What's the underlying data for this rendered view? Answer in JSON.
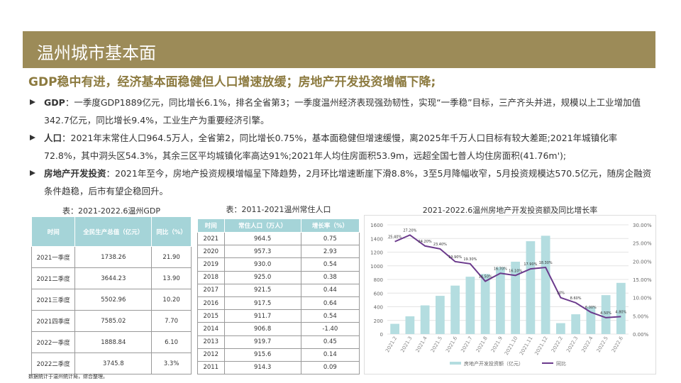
{
  "header": {
    "title": "温州城市基本面"
  },
  "headline": "GDP稳中有进，经济基本面稳健但人口增速放缓；房地产开发投资增幅下降;",
  "bullets": [
    {
      "label": "GDP",
      "text": "：一季度GDP1889亿元，同比增长6.1%，排名全省第3；一季度温州经济表现强劲韧性，实现“一季稳”目标，三产齐头并进，规模以上工业增加值342.7亿元，同比增长9.4%，工业生产为重要经济引擎。"
    },
    {
      "label": "人口",
      "text": "：2021年末常住人口964.5万人，全省第2，同比增长0.75%，基本面稳健但增速缓慢，离2025年千万人口目标有较大差距;2021年城镇化率72.8%，其中洞头区54.3%，其余三区平均城镇化率高达91%;2021年人均住房面积53.9m，远超全国七普人均住房面积(41.76m');"
    },
    {
      "label": "房地产开发投资",
      "text": "：2021年至今，房地产投资规模增幅呈下降趋势，2月环比增速断崖下滑8.8%，3至5月降幅收窄，5月投资规模达570.5亿元，随房企融资条件趋稳，后市有望企稳回升。"
    }
  ],
  "gdp_table": {
    "caption": "表：2021-2022.6温州GDP",
    "columns": [
      "时间",
      "全民生产总值（亿元）",
      "同比（%）"
    ],
    "rows": [
      [
        "2021一季度",
        "1738.26",
        "21.90"
      ],
      [
        "2021二季度",
        "3644.23",
        "13.90"
      ],
      [
        "2021三季度",
        "5502.96",
        "10.20"
      ],
      [
        "2021四季度",
        "7585.02",
        "7.70"
      ],
      [
        "2022一季度",
        "1888.84",
        "6.10"
      ],
      [
        "2022二季度",
        "3745.8",
        "3.3%"
      ]
    ]
  },
  "pop_table": {
    "caption": "表：2011-2021温州常住人口",
    "columns": [
      "时间",
      "常住人口（万人）",
      "增长率（%）"
    ],
    "rows": [
      [
        "2021",
        "964.5",
        "0.75"
      ],
      [
        "2020",
        "957.3",
        "2.93"
      ],
      [
        "2019",
        "930.0",
        "0.54"
      ],
      [
        "2018",
        "925.0",
        "0.38"
      ],
      [
        "2017",
        "921.5",
        "0.44"
      ],
      [
        "2016",
        "917.5",
        "0.64"
      ],
      [
        "2015",
        "911.7",
        "0.54"
      ],
      [
        "2014",
        "906.8",
        "-1.40"
      ],
      [
        "2013",
        "919.7",
        "0.45"
      ],
      [
        "2012",
        "915.6",
        "0.14"
      ],
      [
        "2011",
        "914.3",
        "0.09"
      ]
    ]
  },
  "chart_data": {
    "type": "bar",
    "title": "2021-2022.6温州房地产开发投资额及同比增长率",
    "categories": [
      "2021.2",
      "2021.3",
      "2021.4",
      "2021.5",
      "2021.6",
      "2021.7",
      "2021.8",
      "2021.9",
      "2021.10",
      "2021.11",
      "2021.12",
      "2022.2",
      "2022.3",
      "2022.4",
      "2022.5",
      "2022.6"
    ],
    "series": [
      {
        "name": "房地产开发投资额（亿元）",
        "type": "bar",
        "color": "#b4dde0",
        "values": [
          150,
          260,
          420,
          560,
          710,
          840,
          880,
          980,
          1060,
          1360,
          1440,
          160,
          290,
          400,
          570,
          750
        ]
      },
      {
        "name": "同比",
        "type": "line",
        "axis": "y2",
        "color": "#6b3a8c",
        "values": [
          25.4,
          27.2,
          24.2,
          23.4,
          19.9,
          19.3,
          14.5,
          16.7,
          16.1,
          17.9,
          18.3,
          10,
          8.6,
          6,
          4.5,
          4.8
        ],
        "value_labels": [
          "25.40%",
          "27.20%",
          "24.20%",
          "23.40%",
          "19.90%",
          "19.30%",
          "14.50%",
          "16.70%",
          "16.10%",
          "17.90%",
          "18.30%",
          "10%",
          "8.60%",
          "6.00%",
          "4.50%",
          "4.80%"
        ]
      }
    ],
    "ylim": [
      0,
      1600
    ],
    "yticks": [
      0,
      200,
      400,
      600,
      800,
      1000,
      1200,
      1400,
      1600
    ],
    "y2lim": [
      0,
      30
    ],
    "y2ticks": [
      {
        "value": 0,
        "label": "0.00%"
      },
      {
        "value": 5,
        "label": "5.00%"
      },
      {
        "value": 10,
        "label": "10.00%"
      },
      {
        "value": 15,
        "label": "15.00%"
      },
      {
        "value": 20,
        "label": "20.00%"
      },
      {
        "value": 25,
        "label": "25.00%"
      },
      {
        "value": 30,
        "label": "30.00%"
      }
    ],
    "grid": true,
    "legend": "bottom"
  },
  "footnote": "数据统计于温州统计局，综合整理。"
}
